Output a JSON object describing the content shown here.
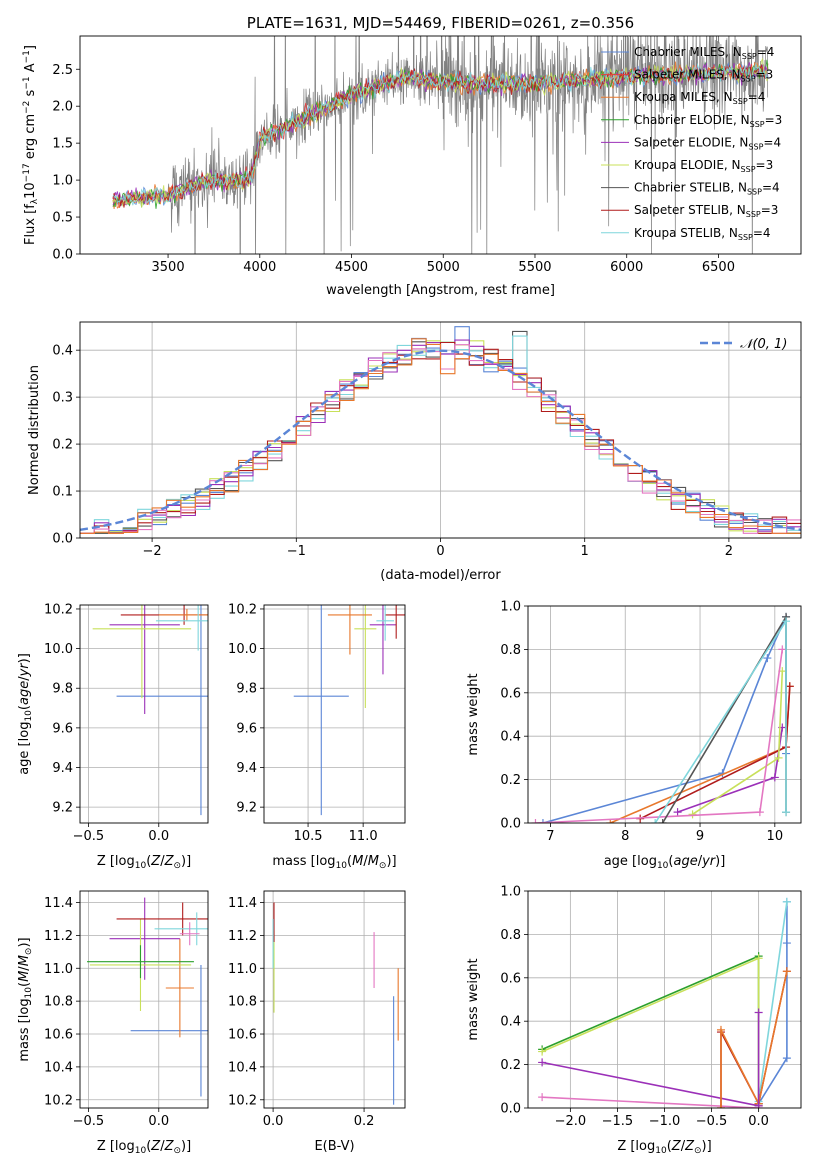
{
  "colors": {
    "Chabrier MILES": "#5b86d6",
    "Salpeter MILES": "#e63c3c",
    "Kroupa MILES": "#e8782c",
    "Chabrier ELODIE": "#2ca02c",
    "Salpeter ELODIE": "#9b30b8",
    "Kroupa ELODIE": "#c8e05a",
    "Chabrier STELIB": "#555555",
    "Salpeter STELIB": "#b01c1c",
    "Kroupa STELIB": "#7fd6dc",
    "Kroupa MILES alt": "#e377c2",
    "data": "#808080",
    "normal": "#5b86d6",
    "grid": "#b0b0b0"
  },
  "chart_data": [
    {
      "id": "spectrum",
      "type": "line",
      "title": "PLATE=1631, MJD=54469, FIBERID=0261, z=0.356",
      "xlabel": "wavelength [Angstrom, rest frame]",
      "ylabel": "Flux [f_λ 10^-17 erg cm^-2 s^-1 A^-1]",
      "xlim": [
        3020,
        6950
      ],
      "ylim": [
        0,
        2.95
      ],
      "xticks": [
        3500,
        4000,
        4500,
        5000,
        5500,
        6000,
        6500
      ],
      "yticks": [
        0.0,
        0.5,
        1.0,
        1.5,
        2.0,
        2.5
      ],
      "legend_position": "top-right",
      "legend": [
        {
          "label": "Chabrier MILES, N",
          "sub": "SSP",
          "post": "=4",
          "color_key": "Chabrier MILES"
        },
        {
          "label": "Salpeter MILES, N",
          "sub": "SSP",
          "post": "=3",
          "color_key": "Salpeter MILES"
        },
        {
          "label": "Kroupa MILES, N",
          "sub": "SSP",
          "post": "=4",
          "color_key": "Kroupa MILES"
        },
        {
          "label": "Chabrier ELODIE, N",
          "sub": "SSP",
          "post": "=3",
          "color_key": "Chabrier ELODIE"
        },
        {
          "label": "Salpeter ELODIE, N",
          "sub": "SSP",
          "post": "=4",
          "color_key": "Salpeter ELODIE"
        },
        {
          "label": "Kroupa ELODIE, N",
          "sub": "SSP",
          "post": "=3",
          "color_key": "Kroupa ELODIE"
        },
        {
          "label": "Chabrier STELIB, N",
          "sub": "SSP",
          "post": "=4",
          "color_key": "Chabrier STELIB"
        },
        {
          "label": "Salpeter STELIB, N",
          "sub": "SSP",
          "post": "=3",
          "color_key": "Salpeter STELIB"
        },
        {
          "label": "Kroupa STELIB, N",
          "sub": "SSP",
          "post": "=4",
          "color_key": "Kroupa STELIB"
        }
      ],
      "continuum_points": [
        [
          3200,
          0.72
        ],
        [
          3500,
          0.8
        ],
        [
          3700,
          0.98
        ],
        [
          3950,
          1.0
        ],
        [
          4000,
          1.55
        ],
        [
          4500,
          2.15
        ],
        [
          4800,
          2.4
        ],
        [
          5000,
          2.32
        ],
        [
          5500,
          2.3
        ],
        [
          6000,
          2.4
        ],
        [
          6500,
          2.45
        ],
        [
          6750,
          2.48
        ]
      ],
      "gaps": [
        [
          3530,
          3540
        ],
        [
          3890,
          3900
        ],
        [
          4690,
          4700
        ]
      ]
    },
    {
      "id": "residuals",
      "type": "histogram",
      "xlabel": "(data-model)/error",
      "ylabel": "Normed distribution",
      "xlim": [
        -2.5,
        2.5
      ],
      "ylim": [
        0,
        0.46
      ],
      "xticks": [
        -2,
        -1,
        0,
        1,
        2
      ],
      "yticks": [
        0.0,
        0.1,
        0.2,
        0.3,
        0.4
      ],
      "legend_position": "top-right",
      "legend_label": "𝒩(0, 1)",
      "bin_width": 0.1,
      "series": [
        {
          "color_key": "Chabrier MILES",
          "peak_bin": 0.1,
          "peak": 0.45
        },
        {
          "color_key": "Kroupa ELODIE",
          "peak_bin": 0.2,
          "peak": 0.42
        },
        {
          "color_key": "Chabrier STELIB",
          "peak_bin": 0.5,
          "peak": 0.44
        },
        {
          "color_key": "Kroupa STELIB",
          "peak_bin": 0.5,
          "peak": 0.43
        },
        {
          "color_key": "Salpeter ELODIE",
          "peak_bin": 0.3,
          "peak": 0.37
        },
        {
          "color_key": "Salpeter STELIB",
          "peak_bin": 0.4,
          "peak": 0.38
        },
        {
          "color_key": "Kroupa MILES alt",
          "peak_bin": 0.0,
          "peak": 0.36
        },
        {
          "color_key": "Kroupa MILES",
          "peak_bin": 0.0,
          "peak": 0.35
        }
      ]
    },
    {
      "id": "age_vs_Z",
      "type": "errorbar",
      "xlabel": "Z [log10(Z/Z⊙)]",
      "ylabel": "age [log10(age/yr)]",
      "xlim": [
        -0.56,
        0.35
      ],
      "ylim": [
        9.12,
        10.22
      ],
      "xticks": [
        -0.5,
        0.0
      ],
      "yticks": [
        9.2,
        9.4,
        9.6,
        9.8,
        10.0,
        10.2
      ],
      "points": [
        {
          "color_key": "Chabrier MILES",
          "x": 0.3,
          "y": 9.76,
          "xerr": 0.6,
          "yerr": 0.6
        },
        {
          "color_key": "Salpeter ELODIE",
          "x": -0.1,
          "y": 10.12,
          "xerr": 0.25,
          "yerr": 0.45
        },
        {
          "color_key": "Kroupa ELODIE",
          "x": -0.12,
          "y": 10.1,
          "xerr": 0.35,
          "yerr": 0.35
        },
        {
          "color_key": "Salpeter STELIB",
          "x": 0.18,
          "y": 10.17,
          "xerr": 0.45,
          "yerr": 0.05
        },
        {
          "color_key": "Kroupa MILES",
          "x": 0.2,
          "y": 10.17,
          "xerr": 0.2,
          "yerr": 0.03
        },
        {
          "color_key": "Kroupa STELIB",
          "x": 0.28,
          "y": 10.14,
          "xerr": 0.3,
          "yerr": 0.15
        }
      ]
    },
    {
      "id": "age_vs_mass",
      "type": "errorbar",
      "xlabel": "mass [log10(M/M⊙)]",
      "ylabel": "",
      "xlim": [
        10.1,
        11.38
      ],
      "ylim": [
        9.12,
        10.22
      ],
      "xticks": [
        10.5,
        11.0
      ],
      "yticks": [
        9.2,
        9.4,
        9.6,
        9.8,
        10.0,
        10.2
      ],
      "points": [
        {
          "color_key": "Chabrier MILES",
          "x": 10.62,
          "y": 9.76,
          "xerr": 0.25,
          "yerr": 0.6
        },
        {
          "color_key": "Salpeter ELODIE",
          "x": 11.18,
          "y": 10.12,
          "xerr": 0.12,
          "yerr": 0.25
        },
        {
          "color_key": "Kroupa ELODIE",
          "x": 11.02,
          "y": 10.1,
          "xerr": 0.1,
          "yerr": 0.4
        },
        {
          "color_key": "Salpeter STELIB",
          "x": 11.3,
          "y": 10.17,
          "xerr": 0.1,
          "yerr": 0.12
        },
        {
          "color_key": "Kroupa MILES",
          "x": 10.88,
          "y": 10.17,
          "xerr": 0.2,
          "yerr": 0.2
        },
        {
          "color_key": "Kroupa STELIB",
          "x": 11.2,
          "y": 10.14,
          "xerr": 0.08,
          "yerr": 0.1
        }
      ]
    },
    {
      "id": "weight_vs_age",
      "type": "line",
      "xlabel": "age [log10(age/yr)]",
      "ylabel": "mass weight",
      "xlim": [
        6.7,
        10.35
      ],
      "ylim": [
        0,
        1
      ],
      "xticks": [
        7,
        8,
        9,
        10
      ],
      "yticks": [
        0.0,
        0.2,
        0.4,
        0.6,
        0.8,
        1.0
      ],
      "series": [
        {
          "color_key": "Chabrier MILES",
          "x": [
            6.9,
            9.3,
            9.9,
            10.15,
            10.15
          ],
          "y": [
            0.0,
            0.23,
            0.76,
            0.95,
            0.32
          ]
        },
        {
          "color_key": "Kroupa MILES",
          "x": [
            7.8,
            10.15,
            10.2
          ],
          "y": [
            0.0,
            0.35,
            0.63
          ]
        },
        {
          "color_key": "Salpeter STELIB",
          "x": [
            8.2,
            10.15,
            10.2
          ],
          "y": [
            0.02,
            0.35,
            0.63
          ]
        },
        {
          "color_key": "Salpeter ELODIE",
          "x": [
            8.7,
            10.0,
            10.1
          ],
          "y": [
            0.05,
            0.21,
            0.44
          ]
        },
        {
          "color_key": "Kroupa ELODIE",
          "x": [
            8.9,
            10.05,
            10.1
          ],
          "y": [
            0.04,
            0.3,
            0.7
          ]
        },
        {
          "color_key": "Kroupa MILES alt",
          "x": [
            6.8,
            9.8,
            10.1
          ],
          "y": [
            0.0,
            0.05,
            0.8
          ]
        },
        {
          "color_key": "Chabrier STELIB",
          "x": [
            8.5,
            10.15,
            10.15
          ],
          "y": [
            0.0,
            0.95,
            0.05
          ]
        },
        {
          "color_key": "Kroupa STELIB",
          "x": [
            8.4,
            10.15,
            10.15
          ],
          "y": [
            0.0,
            0.93,
            0.05
          ]
        }
      ]
    },
    {
      "id": "mass_vs_Z",
      "type": "errorbar",
      "xlabel": "Z [log10(Z/Z⊙)]",
      "ylabel": "mass [log10(M/M⊙)]",
      "xlim": [
        -0.56,
        0.35
      ],
      "ylim": [
        10.15,
        11.47
      ],
      "xticks": [
        -0.5,
        0.0
      ],
      "yticks": [
        10.2,
        10.4,
        10.6,
        10.8,
        11.0,
        11.2,
        11.4
      ],
      "points": [
        {
          "color_key": "Chabrier MILES",
          "x": 0.3,
          "y": 10.62,
          "xerr": 0.5,
          "yerr": 0.4
        },
        {
          "color_key": "Kroupa MILES",
          "x": 0.15,
          "y": 10.88,
          "xerr": 0.1,
          "yerr": 0.3
        },
        {
          "color_key": "Salpeter ELODIE",
          "x": -0.1,
          "y": 11.18,
          "xerr": 0.25,
          "yerr": 0.25
        },
        {
          "color_key": "Kroupa ELODIE",
          "x": -0.13,
          "y": 11.02,
          "xerr": 0.36,
          "yerr": 0.28
        },
        {
          "color_key": "Chabrier ELODIE",
          "x": -0.13,
          "y": 11.04,
          "xerr": 0.38,
          "yerr": 0.1
        },
        {
          "color_key": "Salpeter STELIB",
          "x": 0.17,
          "y": 11.3,
          "xerr": 0.47,
          "yerr": 0.1
        },
        {
          "color_key": "Kroupa STELIB",
          "x": 0.27,
          "y": 11.24,
          "xerr": 0.3,
          "yerr": 0.1
        },
        {
          "color_key": "Kroupa MILES alt",
          "x": 0.22,
          "y": 11.21,
          "xerr": 0.07,
          "yerr": 0.07
        }
      ]
    },
    {
      "id": "mass_vs_EBV",
      "type": "errorbar",
      "xlabel": "E(B-V)",
      "ylabel": "",
      "xlim": [
        -0.02,
        0.29
      ],
      "ylim": [
        10.15,
        11.47
      ],
      "xticks": [
        0.0,
        0.2
      ],
      "yticks": [
        10.2,
        10.4,
        10.6,
        10.8,
        11.0,
        11.2,
        11.4
      ],
      "points": [
        {
          "color_key": "Chabrier MILES",
          "x": 0.265,
          "y": 10.5,
          "xerr": 0,
          "yerr": 0.33
        },
        {
          "color_key": "Kroupa MILES",
          "x": 0.275,
          "y": 10.78,
          "xerr": 0,
          "yerr": 0.22
        },
        {
          "color_key": "Kroupa MILES alt",
          "x": 0.222,
          "y": 11.05,
          "xerr": 0,
          "yerr": 0.17
        },
        {
          "color_key": "Kroupa ELODIE",
          "x": 0.002,
          "y": 10.98,
          "xerr": 0,
          "yerr": 0.25
        },
        {
          "color_key": "Salpeter STELIB",
          "x": 0.002,
          "y": 11.28,
          "xerr": 0,
          "yerr": 0.12
        },
        {
          "color_key": "Kroupa STELIB",
          "x": 0.0,
          "y": 11.15,
          "xerr": 0,
          "yerr": 0.15
        }
      ]
    },
    {
      "id": "weight_vs_Z",
      "type": "line",
      "xlabel": "Z [log10(Z/Z⊙)]",
      "ylabel": "mass weight",
      "xlim": [
        -2.45,
        0.45
      ],
      "ylim": [
        0,
        1
      ],
      "xticks": [
        -2.0,
        -1.5,
        -1.0,
        -0.5,
        0.0
      ],
      "yticks": [
        0.0,
        0.2,
        0.4,
        0.6,
        0.8,
        1.0
      ],
      "series": [
        {
          "color_key": "Chabrier ELODIE",
          "x": [
            -2.3,
            0.0,
            0.0
          ],
          "y": [
            0.27,
            0.7,
            0.02
          ]
        },
        {
          "color_key": "Kroupa ELODIE",
          "x": [
            -2.3,
            0.0,
            0.0
          ],
          "y": [
            0.26,
            0.69,
            0.01
          ]
        },
        {
          "color_key": "Salpeter ELODIE",
          "x": [
            -2.3,
            0.0
          ],
          "y": [
            0.21,
            0.01
          ]
        },
        {
          "color_key": "Kroupa MILES alt",
          "x": [
            -2.3,
            0.0
          ],
          "y": [
            0.05,
            0.0
          ]
        },
        {
          "color_key": "Chabrier MILES",
          "x": [
            0.0,
            0.3,
            0.3,
            0.3
          ],
          "y": [
            0.02,
            0.23,
            0.76,
            0.95
          ]
        },
        {
          "color_key": "Kroupa STELIB",
          "x": [
            0.0,
            0.3
          ],
          "y": [
            0.03,
            0.95
          ]
        },
        {
          "color_key": "Salpeter STELIB",
          "x": [
            -0.4,
            -0.4,
            0.0,
            0.3
          ],
          "y": [
            0.0,
            0.35,
            0.02,
            0.63
          ]
        },
        {
          "color_key": "Kroupa MILES",
          "x": [
            -0.4,
            -0.4,
            0.0,
            0.3
          ],
          "y": [
            0.0,
            0.36,
            0.02,
            0.63
          ]
        },
        {
          "color_key": "Salpeter ELODIE",
          "x": [
            0.0,
            0.0
          ],
          "y": [
            0.01,
            0.44
          ]
        }
      ]
    }
  ]
}
